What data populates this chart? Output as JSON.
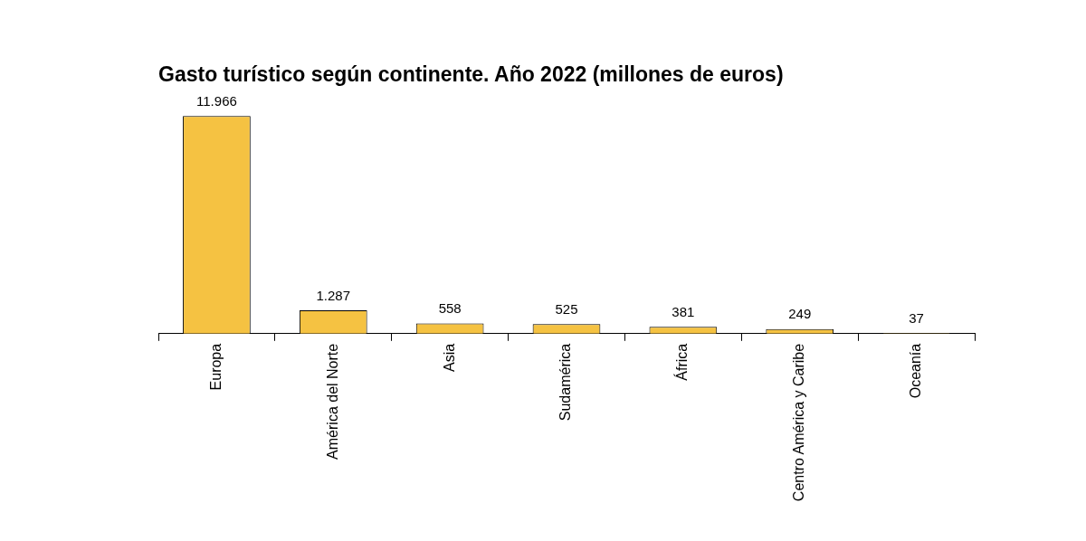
{
  "chart_data": {
    "type": "bar",
    "title": "Gasto turístico según continente. Año 2022 (millones de euros)",
    "categories": [
      "Europa",
      "América del Norte",
      "Asia",
      "Sudamérica",
      "África",
      "Centro América y Caribe",
      "Oceanía"
    ],
    "values": [
      11966,
      1287,
      558,
      525,
      381,
      249,
      37
    ],
    "value_labels": [
      "11.966",
      "1.287",
      "558",
      "525",
      "381",
      "249",
      "37"
    ],
    "color": "#f5c242"
  }
}
